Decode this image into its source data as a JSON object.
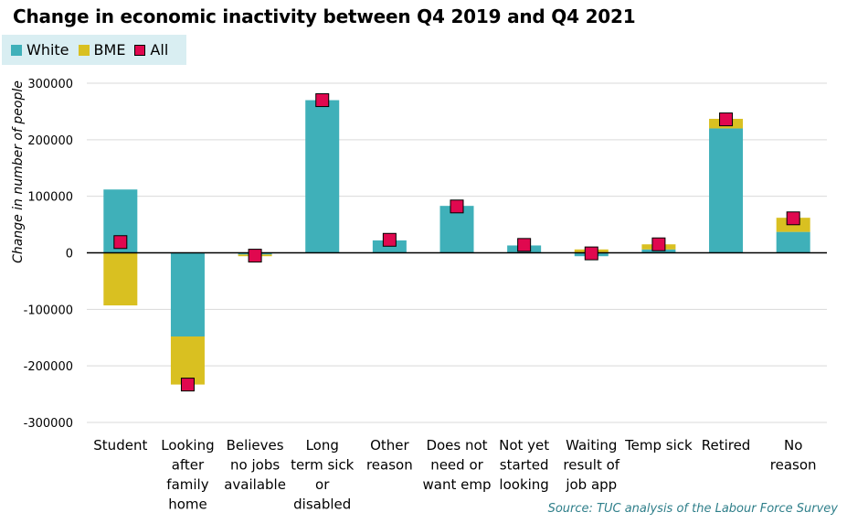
{
  "title": "Change in economic inactivity between Q4 2019 and Q4 2021",
  "source": "Source: TUC analysis of the Labour Force Survey",
  "colors": {
    "white": "#3fb0b9",
    "bme": "#d9c021",
    "all": "#e0084f"
  },
  "chart_data": {
    "type": "bar",
    "stacked": true,
    "ylabel": "Change in number of people",
    "xlabel": "",
    "ylim": [
      -300000,
      300000
    ],
    "yticks": [
      "300000",
      "200000",
      "100000",
      "0",
      "-100000",
      "-200000",
      "-300000"
    ],
    "grid": true,
    "legend_position": "top-left",
    "categories": [
      "Student",
      "Looking after family home",
      "Believes no jobs available",
      "Long term sick or disabled",
      "Other reason",
      "Does not need or want emp",
      "Not yet started looking",
      "Waiting result of job app",
      "Temp sick",
      "Retired",
      "No reason"
    ],
    "category_lines": [
      [
        "Student"
      ],
      [
        "Looking",
        "after",
        "family",
        "home"
      ],
      [
        "Believes",
        "no jobs",
        "available"
      ],
      [
        "Long",
        "term sick",
        "or",
        "disabled"
      ],
      [
        "Other",
        "reason"
      ],
      [
        "Does not",
        "need or",
        "want emp"
      ],
      [
        "Not yet",
        "started",
        "looking"
      ],
      [
        "Waiting",
        "result of",
        "job app"
      ],
      [
        "Temp sick"
      ],
      [
        "Retired"
      ],
      [
        "No",
        "reason"
      ]
    ],
    "series": [
      {
        "name": "White",
        "kind": "bar",
        "values": [
          112000,
          -148000,
          -3000,
          270000,
          22000,
          83000,
          13000,
          -6000,
          6000,
          220000,
          37000
        ]
      },
      {
        "name": "BME",
        "kind": "bar",
        "values": [
          -93000,
          -85000,
          -3000,
          0,
          0,
          0,
          0,
          6000,
          9000,
          17000,
          25000
        ]
      },
      {
        "name": "All",
        "kind": "marker",
        "values": [
          19000,
          -233000,
          -5000,
          270000,
          23000,
          82000,
          14000,
          -1000,
          15000,
          236000,
          61000
        ]
      }
    ]
  }
}
